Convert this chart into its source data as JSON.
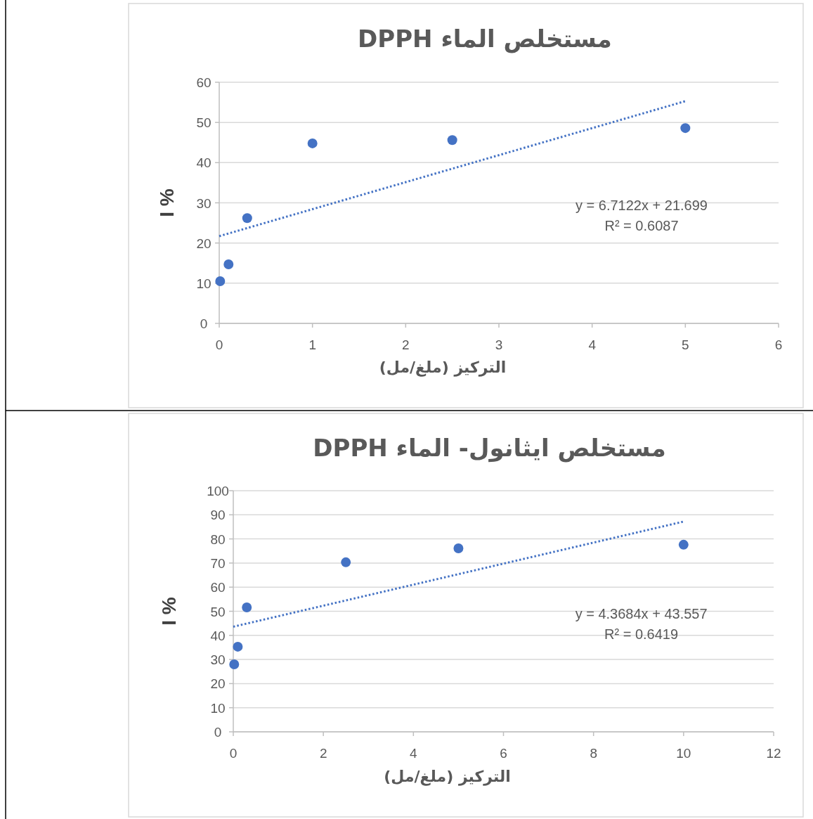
{
  "chart_data": [
    {
      "type": "scatter",
      "title": "مستخلص الماء DPPH",
      "xlabel": "التركيز (ملغ/مل)",
      "ylabel": "I %",
      "x": [
        0.01,
        0.1,
        0.3,
        1,
        2.5,
        5
      ],
      "series": [
        {
          "color": "#4472c4",
          "marker": "circle",
          "values": [
            10.5,
            14.7,
            26.2,
            44.8,
            45.6,
            48.6
          ]
        },
        {
          "type": "line",
          "color": "#4472c4",
          "marker": "none",
          "line_style": "dotted",
          "x": [
            0,
            5
          ],
          "values": [
            21.7,
            55.3
          ]
        }
      ],
      "xlim": [
        0,
        6
      ],
      "xticks": [
        0,
        1,
        2,
        3,
        4,
        5,
        6
      ],
      "ylim": [
        0,
        60
      ],
      "yticks": [
        0,
        10,
        20,
        30,
        40,
        50,
        60
      ],
      "grid": "y",
      "annotations": [
        "y = 6.7122x + 21.699",
        "R² = 0.6087"
      ]
    },
    {
      "type": "scatter",
      "title": "مستخلص ايثانول- الماء DPPH",
      "xlabel": "التركيز (ملغ/مل)",
      "ylabel": "I %",
      "x": [
        0.02,
        0.1,
        0.3,
        2.5,
        5,
        10
      ],
      "series": [
        {
          "color": "#4472c4",
          "marker": "circle",
          "values": [
            28.0,
            35.3,
            51.6,
            70.3,
            76.1,
            77.6
          ]
        },
        {
          "type": "line",
          "color": "#4472c4",
          "marker": "none",
          "line_style": "dotted",
          "x": [
            0,
            10
          ],
          "values": [
            43.6,
            87.2
          ]
        }
      ],
      "xlim": [
        0,
        12
      ],
      "xticks": [
        0,
        2,
        4,
        6,
        8,
        10,
        12
      ],
      "ylim": [
        0,
        100
      ],
      "yticks": [
        0,
        10,
        20,
        30,
        40,
        50,
        60,
        70,
        80,
        90,
        100
      ],
      "grid": "y",
      "annotations": [
        "y = 4.3684x + 43.557",
        "R² = 0.6419"
      ]
    }
  ]
}
